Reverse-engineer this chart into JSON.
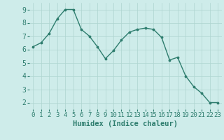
{
  "x": [
    0,
    1,
    2,
    3,
    4,
    5,
    6,
    7,
    8,
    9,
    10,
    11,
    12,
    13,
    14,
    15,
    16,
    17,
    18,
    19,
    20,
    21,
    22,
    23
  ],
  "y": [
    6.2,
    6.5,
    7.2,
    8.3,
    9.0,
    9.0,
    7.5,
    7.0,
    6.2,
    5.3,
    5.9,
    6.7,
    7.3,
    7.5,
    7.6,
    7.5,
    6.9,
    5.2,
    5.4,
    4.0,
    3.2,
    2.7,
    2.0,
    2.0
  ],
  "line_color": "#2e7d6e",
  "marker": ".",
  "marker_size": 3.5,
  "bg_color": "#ceecea",
  "grid_color": "#aed4d0",
  "xlabel": "Humidex (Indice chaleur)",
  "xlabel_fontsize": 7.5,
  "xlim": [
    -0.5,
    23.5
  ],
  "ylim": [
    1.5,
    9.5
  ],
  "yticks": [
    2,
    3,
    4,
    5,
    6,
    7,
    8,
    9
  ],
  "xticks": [
    0,
    1,
    2,
    3,
    4,
    5,
    6,
    7,
    8,
    9,
    10,
    11,
    12,
    13,
    14,
    15,
    16,
    17,
    18,
    19,
    20,
    21,
    22,
    23
  ],
  "tick_label_size": 6.5,
  "linewidth": 1.0
}
